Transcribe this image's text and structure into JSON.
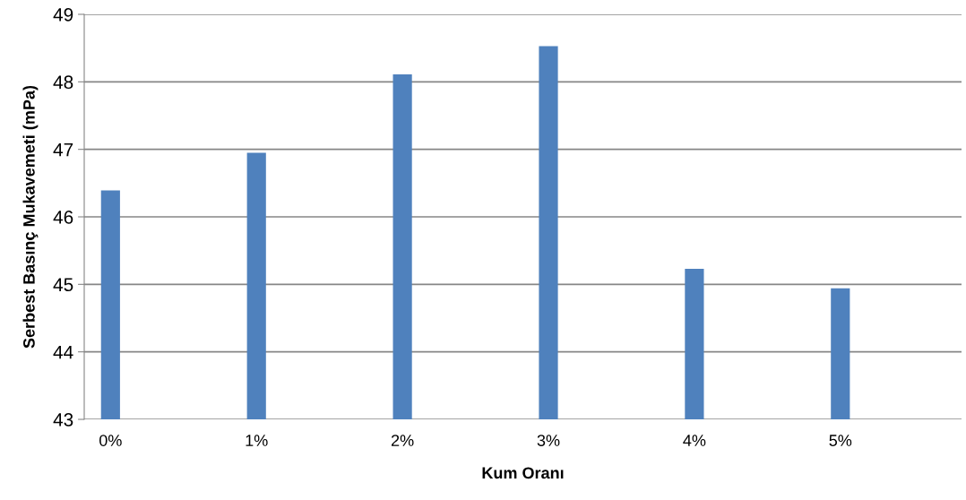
{
  "chart_data": {
    "type": "bar",
    "xlabel": "Kum Oranı",
    "ylabel": "Serbest Basınç Mukavemeti (mPa)",
    "categories": [
      "0%",
      "1%",
      "2%",
      "3%",
      "4%",
      "5%"
    ],
    "values": [
      46.39,
      46.95,
      48.11,
      48.53,
      45.23,
      44.94
    ],
    "color": "#4f81bd",
    "ylim": [
      43,
      49
    ],
    "yticks": [
      43,
      44,
      45,
      46,
      47,
      48,
      49
    ],
    "grid": "y",
    "legend": false
  }
}
